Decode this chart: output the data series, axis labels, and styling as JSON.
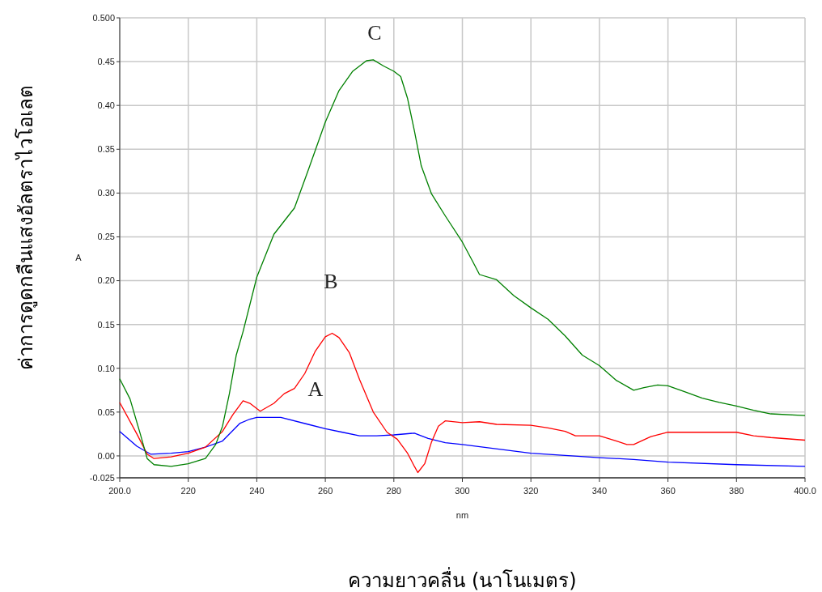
{
  "chart_data": {
    "type": "line",
    "xlabel": "ความยาวคลื่น (นาโนเมตร)",
    "ylabel": "ค่าการดูดกลืนแสงอัลตราไวโอเลต",
    "xlim": [
      200,
      400
    ],
    "ylim": [
      -0.025,
      0.5
    ],
    "xticks": [
      {
        "value": 200,
        "label": "200.0"
      },
      220,
      240,
      260,
      280,
      300,
      320,
      340,
      360,
      380,
      {
        "value": 400,
        "label": "400.0"
      }
    ],
    "yticks": [
      {
        "value": -0.025,
        "label": "-0.025"
      },
      {
        "value": 0,
        "label": "0.00"
      },
      {
        "value": 0.05,
        "label": "0.05"
      },
      {
        "value": 0.1,
        "label": "0.10"
      },
      {
        "value": 0.15,
        "label": "0.15"
      },
      {
        "value": 0.2,
        "label": "0.20"
      },
      {
        "value": 0.25,
        "label": "0.25"
      },
      {
        "value": 0.3,
        "label": "0.30"
      },
      {
        "value": 0.35,
        "label": "0.35"
      },
      {
        "value": 0.4,
        "label": "0.40"
      },
      {
        "value": 0.45,
        "label": "0.45"
      },
      {
        "value": 0.5,
        "label": "0.500"
      }
    ],
    "grid": true,
    "marker": "none",
    "line_style": "solid",
    "series": [
      {
        "color": "#0000ff",
        "x": [
          200,
          205,
          209,
          215,
          220,
          225,
          230,
          235,
          238,
          240,
          247,
          255,
          260,
          265,
          270,
          275,
          280,
          286,
          290,
          295,
          300,
          320,
          340,
          350,
          360,
          380,
          400
        ],
        "values": [
          0.028,
          0.011,
          0.002,
          0.003,
          0.005,
          0.01,
          0.017,
          0.037,
          0.042,
          0.044,
          0.044,
          0.036,
          0.031,
          0.027,
          0.023,
          0.023,
          0.024,
          0.026,
          0.02,
          0.015,
          0.013,
          0.003,
          -0.002,
          -0.004,
          -0.007,
          -0.01,
          -0.012
        ]
      },
      {
        "color": "#ff0000",
        "x": [
          200,
          205,
          208,
          210,
          215,
          220,
          225,
          230,
          233,
          236,
          238,
          241,
          245,
          248,
          251,
          254,
          257,
          260,
          262,
          264,
          267,
          270,
          274,
          278,
          281,
          284,
          286,
          287,
          289,
          291,
          293,
          295,
          300,
          305,
          310,
          320,
          325,
          330,
          333,
          340,
          345,
          348,
          350,
          355,
          360,
          380,
          385,
          390,
          400
        ],
        "values": [
          0.061,
          0.025,
          0.002,
          -0.003,
          -0.001,
          0.003,
          0.01,
          0.028,
          0.047,
          0.063,
          0.06,
          0.051,
          0.06,
          0.071,
          0.077,
          0.094,
          0.119,
          0.136,
          0.14,
          0.135,
          0.118,
          0.087,
          0.05,
          0.027,
          0.019,
          0.003,
          -0.012,
          -0.019,
          -0.009,
          0.016,
          0.034,
          0.04,
          0.038,
          0.039,
          0.036,
          0.035,
          0.032,
          0.028,
          0.023,
          0.023,
          0.017,
          0.013,
          0.013,
          0.022,
          0.027,
          0.027,
          0.023,
          0.021,
          0.018
        ]
      },
      {
        "color": "#008000",
        "x": [
          200,
          203,
          206,
          208,
          210,
          215,
          220,
          225,
          228,
          230,
          232,
          234,
          236,
          240,
          245,
          248,
          251,
          255,
          260,
          264,
          268,
          272,
          274,
          277,
          280,
          282,
          284,
          286,
          288,
          291,
          295,
          300,
          303,
          305,
          310,
          315,
          320,
          325,
          330,
          335,
          340,
          345,
          350,
          353,
          357,
          360,
          365,
          370,
          375,
          380,
          385,
          390,
          400
        ],
        "values": [
          0.088,
          0.065,
          0.025,
          -0.003,
          -0.01,
          -0.012,
          -0.009,
          -0.003,
          0.013,
          0.034,
          0.071,
          0.115,
          0.142,
          0.204,
          0.253,
          0.268,
          0.283,
          0.326,
          0.381,
          0.417,
          0.439,
          0.451,
          0.452,
          0.445,
          0.439,
          0.433,
          0.408,
          0.371,
          0.331,
          0.299,
          0.274,
          0.244,
          0.222,
          0.207,
          0.201,
          0.183,
          0.169,
          0.156,
          0.137,
          0.115,
          0.103,
          0.086,
          0.075,
          0.078,
          0.081,
          0.08,
          0.073,
          0.066,
          0.061,
          0.057,
          0.052,
          0.048,
          0.046
        ]
      }
    ],
    "annotations": [
      "A",
      "nm",
      "A",
      "B",
      "C"
    ]
  }
}
